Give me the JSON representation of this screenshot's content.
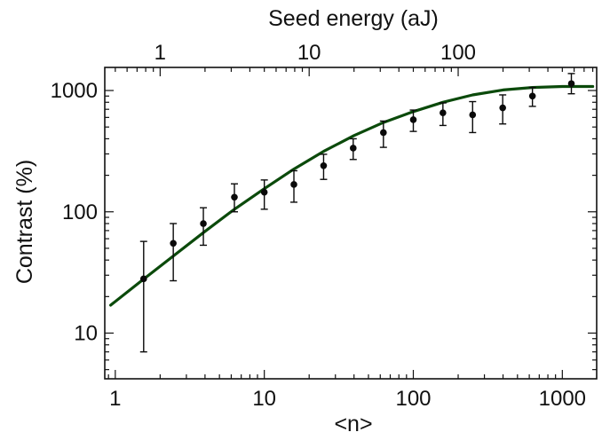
{
  "chart_data": {
    "type": "scatter",
    "title": "",
    "xlabel": "<n>",
    "ylabel": "Contrast (%)",
    "top_xlabel": "Seed energy (aJ)",
    "x_scale": "log",
    "y_scale": "log",
    "xlim": [
      0.85,
      1700
    ],
    "ylim": [
      4.2,
      1550
    ],
    "x_ticks": [
      1,
      10,
      100,
      1000
    ],
    "x_tick_labels": [
      "1",
      "10",
      "100",
      "1000"
    ],
    "y_ticks": [
      10,
      100,
      1000
    ],
    "y_tick_labels": [
      "10",
      "100",
      "1000"
    ],
    "top_ticks": [
      1,
      10,
      100
    ],
    "top_tick_labels": [
      "1",
      "10",
      "100"
    ],
    "top_ticks_at_n": [
      2.0,
      20.0,
      200.0
    ],
    "grid": false,
    "colors": {
      "marker": "#0a0a0a",
      "curve": "#0b4a0b",
      "axis": "#111111"
    },
    "series": [
      {
        "kind": "points_with_error_bars",
        "points": [
          {
            "x": 1.55,
            "y": 28,
            "ylo": 7,
            "yhi": 57
          },
          {
            "x": 2.45,
            "y": 55,
            "ylo": 27,
            "yhi": 80
          },
          {
            "x": 3.9,
            "y": 80,
            "ylo": 53,
            "yhi": 108
          },
          {
            "x": 6.3,
            "y": 132,
            "ylo": 100,
            "yhi": 170
          },
          {
            "x": 10,
            "y": 145,
            "ylo": 105,
            "yhi": 183
          },
          {
            "x": 15.8,
            "y": 168,
            "ylo": 120,
            "yhi": 218
          },
          {
            "x": 25,
            "y": 240,
            "ylo": 185,
            "yhi": 298
          },
          {
            "x": 39.5,
            "y": 335,
            "ylo": 270,
            "yhi": 400
          },
          {
            "x": 63,
            "y": 450,
            "ylo": 340,
            "yhi": 560
          },
          {
            "x": 100,
            "y": 575,
            "ylo": 460,
            "yhi": 690
          },
          {
            "x": 158,
            "y": 655,
            "ylo": 515,
            "yhi": 790
          },
          {
            "x": 250,
            "y": 630,
            "ylo": 450,
            "yhi": 810
          },
          {
            "x": 398,
            "y": 720,
            "ylo": 530,
            "yhi": 920
          },
          {
            "x": 630,
            "y": 900,
            "ylo": 740,
            "yhi": 1060
          },
          {
            "x": 1150,
            "y": 1140,
            "ylo": 940,
            "yhi": 1380
          }
        ]
      },
      {
        "kind": "line",
        "points": [
          {
            "x": 0.93,
            "y": 17
          },
          {
            "x": 1.5,
            "y": 27
          },
          {
            "x": 2.5,
            "y": 44
          },
          {
            "x": 4,
            "y": 69
          },
          {
            "x": 6.3,
            "y": 105
          },
          {
            "x": 10,
            "y": 155
          },
          {
            "x": 15.8,
            "y": 225
          },
          {
            "x": 25,
            "y": 315
          },
          {
            "x": 40,
            "y": 425
          },
          {
            "x": 63,
            "y": 545
          },
          {
            "x": 100,
            "y": 670
          },
          {
            "x": 158,
            "y": 800
          },
          {
            "x": 250,
            "y": 920
          },
          {
            "x": 400,
            "y": 1010
          },
          {
            "x": 630,
            "y": 1060
          },
          {
            "x": 1000,
            "y": 1080
          },
          {
            "x": 1600,
            "y": 1080
          }
        ]
      }
    ]
  }
}
